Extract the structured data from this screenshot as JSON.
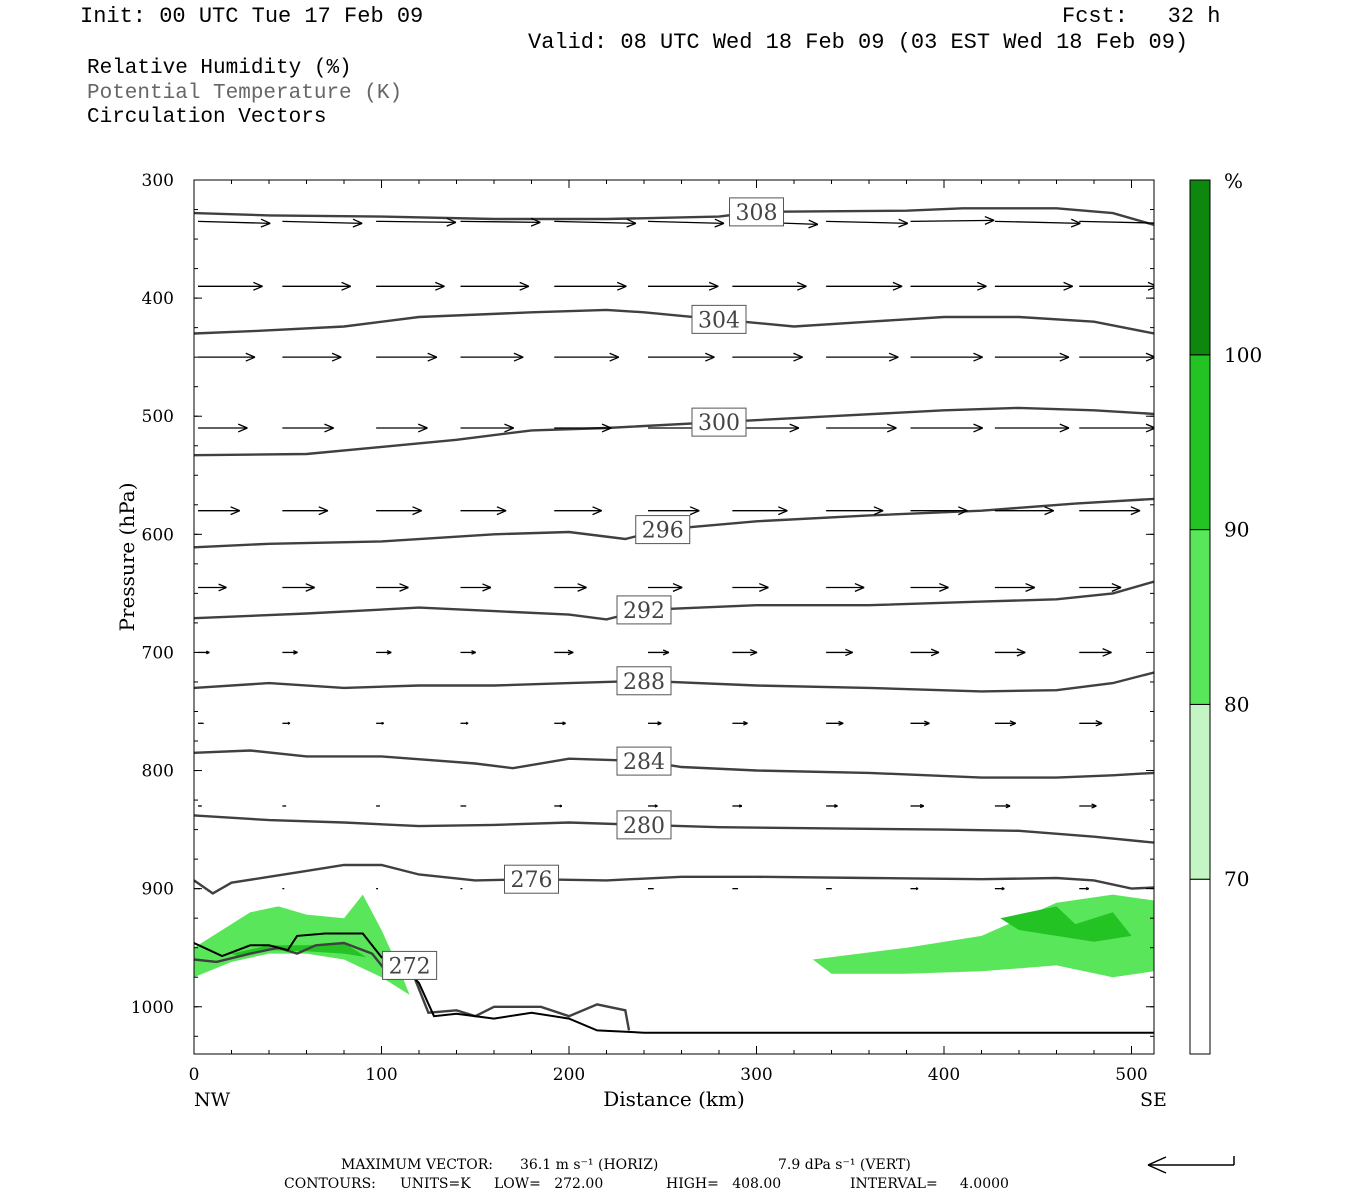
{
  "header": {
    "init": "Init: 00 UTC Tue 17 Feb 09",
    "fcst": "Fcst:   32 h",
    "valid": "Valid: 08 UTC Wed 18 Feb 09 (03 EST Wed 18 Feb 09)"
  },
  "fields": {
    "rh": "Relative Humidity (%)",
    "theta": "Potential Temperature (K)",
    "vectors": "Circulation Vectors"
  },
  "colorbar": {
    "unit": "%",
    "levels": [
      "70",
      "80",
      "90",
      "100"
    ],
    "colors": [
      "#ffffff",
      "#c4f5c4",
      "#5ae65a",
      "#22c322",
      "#0e870e"
    ]
  },
  "footer": {
    "max_vector_label": "MAXIMUM VECTOR:",
    "max_vector_horiz": "36.1 m s⁻¹ (HORIZ)",
    "max_vector_vert": "7.9 dPa s⁻¹ (VERT)",
    "contours_label": "CONTOURS:",
    "units": "UNITS=K",
    "low": "LOW=   272.00",
    "high": "HIGH=   408.00",
    "interval": "INTERVAL=     4.0000"
  },
  "chart_data": {
    "type": "contour",
    "xlabel": "Distance (km)",
    "ylabel": "Pressure (hPa)",
    "xlim": [
      0,
      512
    ],
    "ylim": [
      1040,
      300
    ],
    "x_ticks": [
      "0",
      "100",
      "200",
      "300",
      "400",
      "500"
    ],
    "y_ticks": [
      "300",
      "400",
      "500",
      "600",
      "700",
      "800",
      "900",
      "1000"
    ],
    "x_end_labels": {
      "left": "NW",
      "right": "SE"
    },
    "theta_contours": [
      {
        "level": "308",
        "points": [
          [
            0,
            328
          ],
          [
            40,
            330
          ],
          [
            100,
            331
          ],
          [
            160,
            333
          ],
          [
            220,
            333
          ],
          [
            280,
            331
          ],
          [
            300,
            327
          ],
          [
            380,
            326
          ],
          [
            410,
            324
          ],
          [
            460,
            324
          ],
          [
            490,
            328
          ],
          [
            512,
            338
          ]
        ]
      },
      {
        "level": "304",
        "points": [
          [
            0,
            430
          ],
          [
            30,
            428
          ],
          [
            80,
            424
          ],
          [
            120,
            416
          ],
          [
            180,
            412
          ],
          [
            220,
            410
          ],
          [
            240,
            412
          ],
          [
            280,
            418
          ],
          [
            320,
            424
          ],
          [
            360,
            420
          ],
          [
            400,
            416
          ],
          [
            440,
            416
          ],
          [
            480,
            420
          ],
          [
            512,
            430
          ]
        ]
      },
      {
        "level": "300",
        "points": [
          [
            0,
            533
          ],
          [
            60,
            532
          ],
          [
            100,
            526
          ],
          [
            140,
            520
          ],
          [
            180,
            512
          ],
          [
            220,
            510
          ],
          [
            280,
            505
          ],
          [
            340,
            500
          ],
          [
            400,
            495
          ],
          [
            440,
            493
          ],
          [
            480,
            495
          ],
          [
            512,
            498
          ]
        ]
      },
      {
        "level": "296",
        "points": [
          [
            0,
            611
          ],
          [
            40,
            608
          ],
          [
            100,
            606
          ],
          [
            160,
            600
          ],
          [
            200,
            598
          ],
          [
            230,
            604
          ],
          [
            250,
            596
          ],
          [
            300,
            589
          ],
          [
            360,
            584
          ],
          [
            420,
            580
          ],
          [
            470,
            574
          ],
          [
            512,
            570
          ]
        ]
      },
      {
        "level": "292",
        "points": [
          [
            0,
            671
          ],
          [
            60,
            667
          ],
          [
            120,
            662
          ],
          [
            160,
            665
          ],
          [
            200,
            668
          ],
          [
            220,
            672
          ],
          [
            240,
            664
          ],
          [
            300,
            660
          ],
          [
            360,
            660
          ],
          [
            420,
            657
          ],
          [
            460,
            655
          ],
          [
            490,
            650
          ],
          [
            512,
            640
          ]
        ]
      },
      {
        "level": "288",
        "points": [
          [
            0,
            730
          ],
          [
            40,
            726
          ],
          [
            80,
            730
          ],
          [
            120,
            728
          ],
          [
            160,
            728
          ],
          [
            200,
            726
          ],
          [
            240,
            724
          ],
          [
            300,
            728
          ],
          [
            360,
            730
          ],
          [
            420,
            733
          ],
          [
            460,
            732
          ],
          [
            490,
            726
          ],
          [
            512,
            717
          ]
        ]
      },
      {
        "level": "284",
        "points": [
          [
            0,
            785
          ],
          [
            30,
            783
          ],
          [
            60,
            788
          ],
          [
            100,
            788
          ],
          [
            150,
            794
          ],
          [
            170,
            798
          ],
          [
            200,
            790
          ],
          [
            240,
            792
          ],
          [
            260,
            797
          ],
          [
            300,
            800
          ],
          [
            360,
            802
          ],
          [
            420,
            806
          ],
          [
            460,
            806
          ],
          [
            490,
            804
          ],
          [
            512,
            802
          ]
        ]
      },
      {
        "level": "280",
        "points": [
          [
            0,
            838
          ],
          [
            40,
            842
          ],
          [
            80,
            844
          ],
          [
            120,
            847
          ],
          [
            160,
            846
          ],
          [
            200,
            844
          ],
          [
            240,
            846
          ],
          [
            280,
            848
          ],
          [
            340,
            849
          ],
          [
            400,
            850
          ],
          [
            440,
            851
          ],
          [
            480,
            856
          ],
          [
            512,
            861
          ]
        ]
      },
      {
        "level": "276",
        "points": [
          [
            0,
            893
          ],
          [
            10,
            904
          ],
          [
            20,
            895
          ],
          [
            40,
            890
          ],
          [
            60,
            885
          ],
          [
            80,
            880
          ],
          [
            100,
            880
          ],
          [
            120,
            888
          ],
          [
            150,
            893
          ],
          [
            180,
            892
          ],
          [
            220,
            893
          ],
          [
            260,
            890
          ],
          [
            300,
            890
          ],
          [
            360,
            891
          ],
          [
            420,
            892
          ],
          [
            460,
            891
          ],
          [
            480,
            893
          ],
          [
            500,
            900
          ],
          [
            512,
            899
          ]
        ]
      },
      {
        "level": "272",
        "points": [
          [
            0,
            960
          ],
          [
            12,
            962
          ],
          [
            30,
            955
          ],
          [
            45,
            950
          ],
          [
            55,
            955
          ],
          [
            65,
            948
          ],
          [
            80,
            946
          ],
          [
            95,
            955
          ],
          [
            105,
            975
          ],
          [
            115,
            965
          ],
          [
            125,
            1005
          ],
          [
            140,
            1003
          ],
          [
            150,
            1008
          ],
          [
            160,
            1000
          ],
          [
            185,
            1000
          ],
          [
            200,
            1008
          ],
          [
            215,
            998
          ],
          [
            230,
            1003
          ],
          [
            232,
            1020
          ]
        ]
      }
    ],
    "terrain_line": [
      [
        0,
        946
      ],
      [
        15,
        957
      ],
      [
        30,
        948
      ],
      [
        40,
        948
      ],
      [
        50,
        952
      ],
      [
        55,
        940
      ],
      [
        70,
        938
      ],
      [
        90,
        938
      ],
      [
        100,
        958
      ],
      [
        113,
        968
      ],
      [
        120,
        980
      ],
      [
        128,
        1008
      ],
      [
        140,
        1006
      ],
      [
        160,
        1010
      ],
      [
        180,
        1005
      ],
      [
        200,
        1010
      ],
      [
        215,
        1020
      ],
      [
        240,
        1022
      ],
      [
        300,
        1022
      ],
      [
        512,
        1022
      ]
    ],
    "rh_shading": [
      {
        "band": "80",
        "points": [
          [
            0,
            950
          ],
          [
            15,
            935
          ],
          [
            30,
            920
          ],
          [
            45,
            915
          ],
          [
            60,
            922
          ],
          [
            80,
            925
          ],
          [
            90,
            905
          ],
          [
            100,
            935
          ],
          [
            110,
            970
          ],
          [
            115,
            990
          ],
          [
            100,
            975
          ],
          [
            80,
            960
          ],
          [
            60,
            955
          ],
          [
            40,
            955
          ],
          [
            20,
            962
          ],
          [
            0,
            975
          ]
        ]
      },
      {
        "band": "90",
        "points": [
          [
            20,
            955
          ],
          [
            40,
            948
          ],
          [
            60,
            948
          ],
          [
            80,
            946
          ],
          [
            92,
            958
          ],
          [
            80,
            955
          ],
          [
            60,
            953
          ],
          [
            40,
            952
          ],
          [
            25,
            958
          ]
        ]
      },
      {
        "band": "80",
        "points": [
          [
            330,
            960
          ],
          [
            380,
            950
          ],
          [
            420,
            940
          ],
          [
            460,
            912
          ],
          [
            490,
            905
          ],
          [
            512,
            910
          ],
          [
            512,
            970
          ],
          [
            490,
            975
          ],
          [
            460,
            965
          ],
          [
            420,
            970
          ],
          [
            380,
            972
          ],
          [
            340,
            972
          ]
        ]
      },
      {
        "band": "90",
        "points": [
          [
            430,
            925
          ],
          [
            460,
            915
          ],
          [
            470,
            930
          ],
          [
            490,
            920
          ],
          [
            500,
            940
          ],
          [
            480,
            945
          ],
          [
            460,
            940
          ],
          [
            440,
            935
          ]
        ]
      }
    ],
    "vectors": {
      "rows": [
        {
          "p": 335,
          "x": [
            0,
            45,
            95,
            140,
            190,
            240,
            285,
            335,
            380,
            425,
            470
          ],
          "u": [
            38,
            42,
            42,
            42,
            43,
            40,
            45,
            43,
            44,
            45,
            46
          ],
          "w": [
            -2,
            -2,
            -1,
            -1,
            -2,
            -2,
            -3,
            -2,
            1,
            -2,
            -2
          ]
        },
        {
          "p": 390,
          "x": [
            0,
            45,
            95,
            140,
            190,
            240,
            285,
            335,
            380,
            425,
            470
          ],
          "u": [
            34,
            36,
            36,
            36,
            38,
            37,
            39,
            40,
            40,
            41,
            41
          ]
        },
        {
          "p": 450,
          "x": [
            0,
            45,
            95,
            140,
            190,
            240,
            285,
            335,
            380,
            425,
            470
          ],
          "u": [
            30,
            31,
            32,
            33,
            34,
            35,
            37,
            38,
            38,
            39,
            40
          ]
        },
        {
          "p": 510,
          "x": [
            0,
            45,
            95,
            140,
            190,
            240,
            285,
            335,
            380,
            425,
            470
          ],
          "u": [
            26,
            27,
            27,
            28,
            30,
            33,
            35,
            37,
            38,
            39,
            40
          ]
        },
        {
          "p": 580,
          "x": [
            0,
            45,
            95,
            140,
            190,
            240,
            285,
            335,
            380,
            425,
            470
          ],
          "u": [
            22,
            24,
            24,
            24,
            25,
            27,
            29,
            30,
            30,
            31,
            32
          ]
        },
        {
          "p": 645,
          "x": [
            0,
            45,
            95,
            140,
            190,
            240,
            285,
            335,
            380,
            425,
            470
          ],
          "u": [
            15,
            17,
            17,
            16,
            17,
            18,
            19,
            20,
            20,
            21,
            22
          ]
        },
        {
          "p": 700,
          "x": [
            0,
            45,
            95,
            140,
            190,
            240,
            285,
            335,
            380,
            425,
            470
          ],
          "u": [
            6,
            8,
            8,
            8,
            10,
            11,
            13,
            14,
            15,
            16,
            17
          ]
        },
        {
          "p": 760,
          "x": [
            0,
            45,
            95,
            140,
            190,
            240,
            285,
            335,
            380,
            425,
            470
          ],
          "u": [
            3,
            4,
            4,
            4,
            6,
            7,
            8,
            9,
            10,
            11,
            12
          ]
        },
        {
          "p": 830,
          "x": [
            0,
            45,
            95,
            140,
            190,
            240,
            285,
            335,
            380,
            425,
            470
          ],
          "u": [
            2,
            2,
            2,
            3,
            4,
            5,
            5,
            6,
            7,
            8,
            9
          ]
        },
        {
          "p": 900,
          "x": [
            0,
            45,
            95,
            140,
            190,
            240,
            285,
            335,
            380,
            425,
            470
          ],
          "u": [
            1,
            1,
            1,
            1,
            2,
            3,
            3,
            3,
            4,
            5,
            5
          ]
        }
      ]
    }
  }
}
